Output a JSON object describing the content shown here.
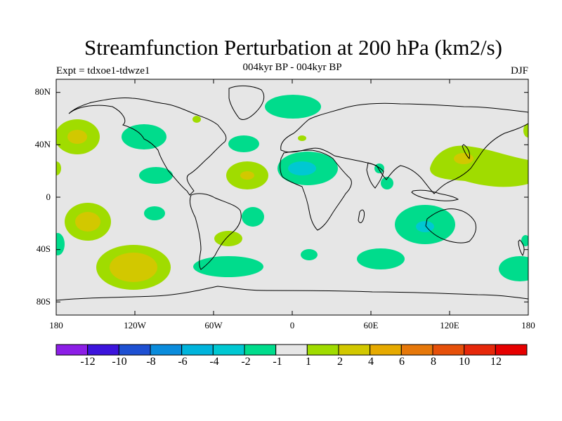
{
  "title": "Streamfunction Perturbation at 200 hPa (km2/s)",
  "subtitle": "004kyr BP - 004kyr BP",
  "left_label": "Expt = tdxoe1-tdwze1",
  "right_label": "DJF",
  "colors": {
    "neutral": "#e6e6e6",
    "green": "#00dc8c",
    "cyan": "#00c8d2",
    "lime": "#a0dc00",
    "olive": "#d2c800"
  },
  "y_ticks": [
    "80N",
    "40N",
    "0",
    "40S",
    "80S"
  ],
  "x_ticks": [
    "180",
    "120W",
    "60W",
    "0",
    "60E",
    "120E",
    "180"
  ],
  "colorbar": {
    "colors": [
      "#8c1ee6",
      "#3c14dc",
      "#1e50d2",
      "#0a8cdc",
      "#00b4dc",
      "#00c8d2",
      "#00dc8c",
      "#e6e6e6",
      "#a0dc00",
      "#d2c800",
      "#e6aa00",
      "#e6780a",
      "#e6500a",
      "#e6280a",
      "#e60000"
    ],
    "labels": [
      "-12",
      "-10",
      "-8",
      "-6",
      "-4",
      "-2",
      "-1",
      "1",
      "2",
      "4",
      "6",
      "8",
      "10",
      "12"
    ]
  }
}
